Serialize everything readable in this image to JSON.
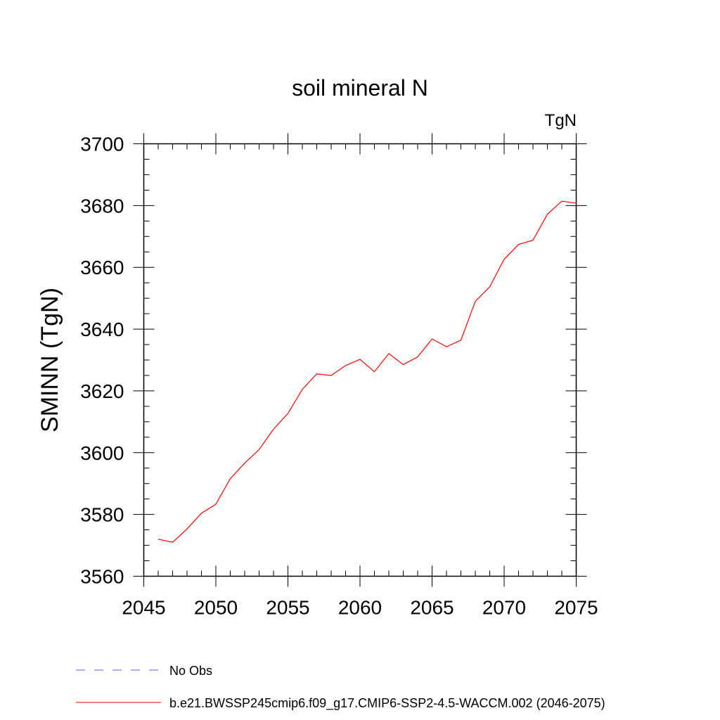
{
  "chart_data": {
    "type": "line",
    "title": "soil mineral N",
    "units": "TgN",
    "ylabel": "SMINN  (TgN)",
    "xlabel": "",
    "xlim": [
      2045,
      2075
    ],
    "ylim": [
      3560,
      3700
    ],
    "xticks": [
      2045,
      2050,
      2055,
      2060,
      2065,
      2070,
      2075
    ],
    "yticks": [
      3560,
      3580,
      3600,
      3620,
      3640,
      3660,
      3680,
      3700
    ],
    "x_minor_step": 1,
    "y_minor_step": 5,
    "grid": false,
    "series": [
      {
        "name": "b.e21.BWSSP245cmip6.f09_g17.CMIP6-SSP2-4.5-WACCM.002 (2046-2075)",
        "color": "#ff0000",
        "dash": "solid",
        "x": [
          2046,
          2047,
          2048,
          2049,
          2050,
          2051,
          2052,
          2053,
          2054,
          2055,
          2056,
          2057,
          2058,
          2059,
          2060,
          2061,
          2062,
          2063,
          2064,
          2065,
          2066,
          2067,
          2068,
          2069,
          2070,
          2071,
          2072,
          2073,
          2074,
          2075
        ],
        "y": [
          3572.0,
          3571.0,
          3575.3,
          3580.4,
          3583.3,
          3591.6,
          3596.6,
          3601.0,
          3607.6,
          3612.7,
          3620.5,
          3625.5,
          3625.0,
          3628.2,
          3630.2,
          3626.2,
          3632.1,
          3628.5,
          3631.0,
          3636.8,
          3634.3,
          3636.4,
          3649.0,
          3653.7,
          3662.6,
          3667.4,
          3668.8,
          3677.2,
          3681.4,
          3680.8
        ]
      }
    ],
    "legend": {
      "placement": "bottom-left",
      "entries": [
        {
          "label": "No Obs",
          "color": "#6a5acd",
          "dash": "dashed"
        },
        {
          "label": "b.e21.BWSSP245cmip6.f09_g17.CMIP6-SSP2-4.5-WACCM.002 (2046-2075)",
          "color": "#ff0000",
          "dash": "solid"
        }
      ]
    }
  }
}
